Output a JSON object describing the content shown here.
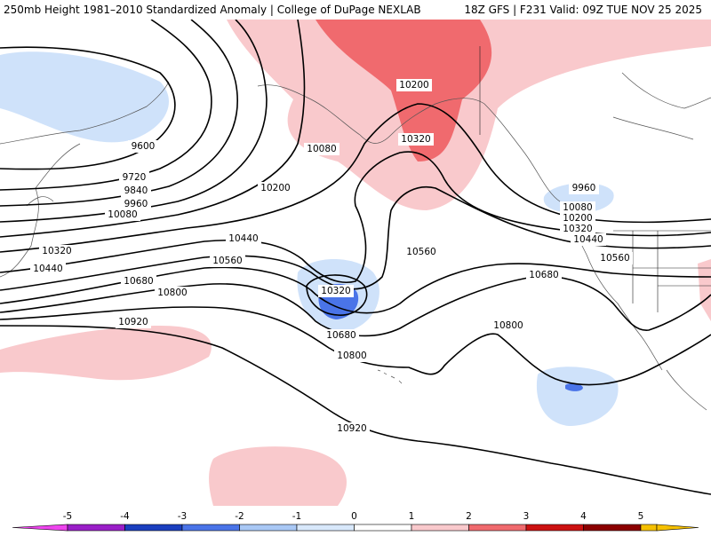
{
  "header": {
    "title": "250mb Height 1981–2010 Standardized Anomaly | College of DuPage NEXLAB",
    "run_info": "18Z GFS | F231 Valid: 09Z TUE NOV 25 2025"
  },
  "contour_labels": {
    "l9600": "9600",
    "l9720": "9720",
    "l9840": "9840",
    "l9960_w": "9960",
    "l10080_w": "10080",
    "l10080_n": "10080",
    "l10200_w": "10200",
    "l10200_ak": "10200",
    "l10320_ak": "10320",
    "l10320_w": "10320",
    "l10440_w": "10440",
    "l10440_c": "10440",
    "l10560_c": "10560",
    "l10560_e": "10560",
    "l10680_w": "10680",
    "l10680_e": "10680",
    "l10800_w": "10800",
    "l10800_c": "10800",
    "l10800_e": "10800",
    "l10920_w": "10920",
    "l10920_c": "10920",
    "l10320_low": "10320",
    "l10680_low": "10680",
    "l9960_e": "9960",
    "l10080_e": "10080",
    "l10200_e": "10200",
    "l10320_e": "10320",
    "l10440_e": "10440",
    "l10560_ee": "10560"
  },
  "colorbar": {
    "ticks": [
      "-5",
      "-4",
      "-3",
      "-2",
      "-1",
      "0",
      "1",
      "2",
      "3",
      "4",
      "5"
    ],
    "colors": [
      "#ee44ee",
      "#9a1fc8",
      "#1b3fbf",
      "#4a74e8",
      "#a9c8f5",
      "#d8e8fb",
      "#ffffff",
      "#f9c9cc",
      "#f06a6e",
      "#cc1111",
      "#8b0000",
      "#f08b00",
      "#f5c000"
    ]
  }
}
